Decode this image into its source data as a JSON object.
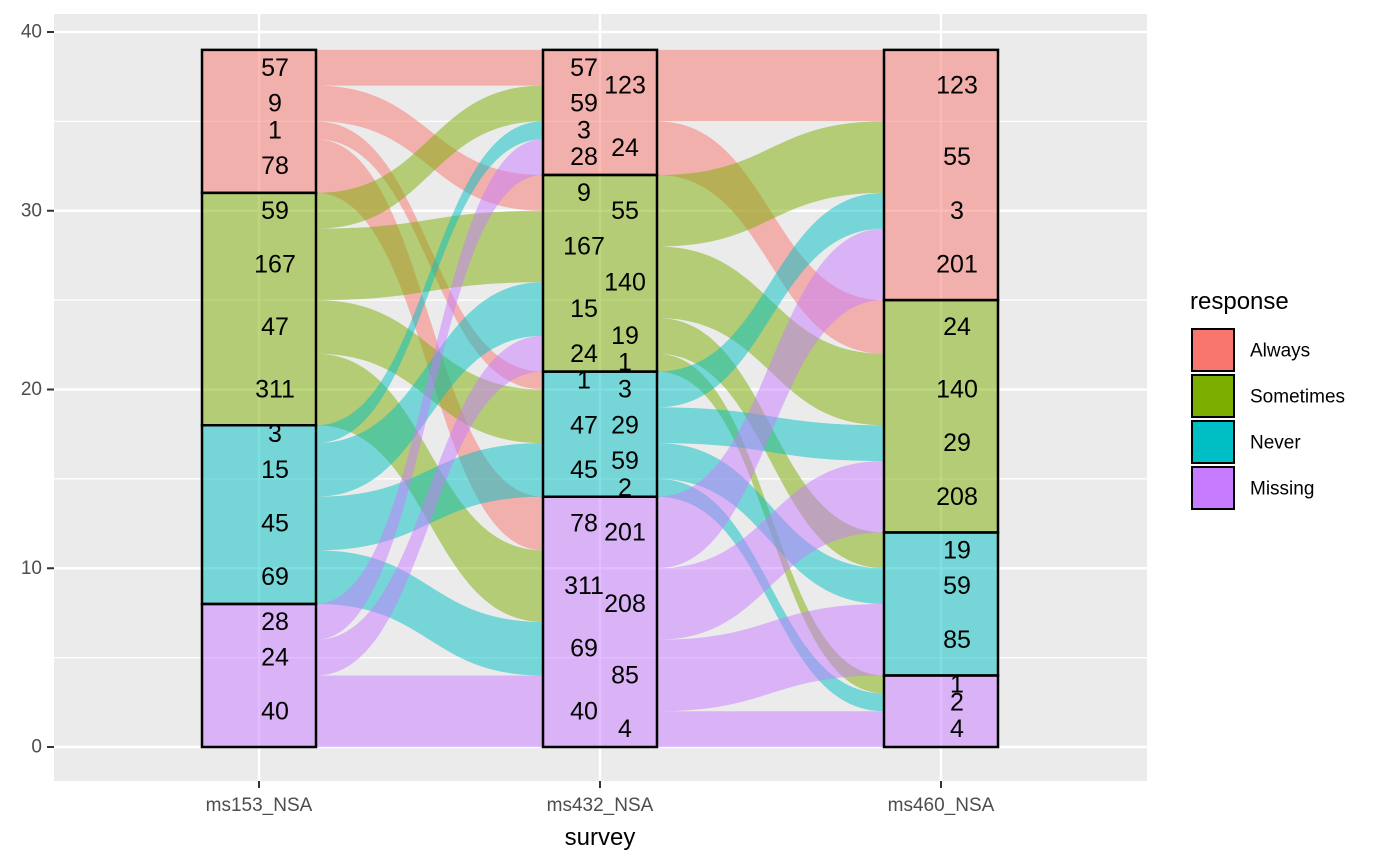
{
  "chart_data": {
    "type": "alluvial",
    "xlabel": "survey",
    "ylabel": "",
    "ylim": [
      0,
      40
    ],
    "yticks": [
      0,
      10,
      20,
      30,
      40
    ],
    "grid": true,
    "axes": [
      "ms153_NSA",
      "ms432_NSA",
      "ms460_NSA"
    ],
    "legend": {
      "title": "response",
      "position": "right",
      "entries": [
        "Always",
        "Sometimes",
        "Never",
        "Missing"
      ]
    },
    "colors": {
      "Always": "#F8766D",
      "Sometimes": "#7CAE00",
      "Never": "#00BFC4",
      "Missing": "#C77CFF"
    },
    "strata": [
      {
        "axis": "ms153_NSA",
        "response": "Always",
        "count": 8
      },
      {
        "axis": "ms153_NSA",
        "response": "Sometimes",
        "count": 13
      },
      {
        "axis": "ms153_NSA",
        "response": "Never",
        "count": 10
      },
      {
        "axis": "ms153_NSA",
        "response": "Missing",
        "count": 8
      },
      {
        "axis": "ms432_NSA",
        "response": "Always",
        "count": 7
      },
      {
        "axis": "ms432_NSA",
        "response": "Sometimes",
        "count": 11
      },
      {
        "axis": "ms432_NSA",
        "response": "Never",
        "count": 7
      },
      {
        "axis": "ms432_NSA",
        "response": "Missing",
        "count": 14
      },
      {
        "axis": "ms460_NSA",
        "response": "Always",
        "count": 14
      },
      {
        "axis": "ms460_NSA",
        "response": "Sometimes",
        "count": 13
      },
      {
        "axis": "ms460_NSA",
        "response": "Never",
        "count": 8
      },
      {
        "axis": "ms460_NSA",
        "response": "Missing",
        "count": 4
      }
    ],
    "flows": [
      {
        "from_axis": "ms153_NSA",
        "to_axis": "ms432_NSA",
        "fill": "Always",
        "from_bottom": 37,
        "from_top": 39,
        "to_bottom": 37,
        "to_top": 39
      },
      {
        "from_axis": "ms153_NSA",
        "to_axis": "ms432_NSA",
        "fill": "Always",
        "from_bottom": 35,
        "from_top": 37,
        "to_bottom": 30,
        "to_top": 32
      },
      {
        "from_axis": "ms153_NSA",
        "to_axis": "ms432_NSA",
        "fill": "Always",
        "from_bottom": 34,
        "from_top": 35,
        "to_bottom": 20,
        "to_top": 21
      },
      {
        "from_axis": "ms153_NSA",
        "to_axis": "ms432_NSA",
        "fill": "Always",
        "from_bottom": 31,
        "from_top": 34,
        "to_bottom": 11,
        "to_top": 14
      },
      {
        "from_axis": "ms153_NSA",
        "to_axis": "ms432_NSA",
        "fill": "Sometimes",
        "from_bottom": 29,
        "from_top": 31,
        "to_bottom": 35,
        "to_top": 37
      },
      {
        "from_axis": "ms153_NSA",
        "to_axis": "ms432_NSA",
        "fill": "Sometimes",
        "from_bottom": 25,
        "from_top": 29,
        "to_bottom": 26,
        "to_top": 30
      },
      {
        "from_axis": "ms153_NSA",
        "to_axis": "ms432_NSA",
        "fill": "Sometimes",
        "from_bottom": 22,
        "from_top": 25,
        "to_bottom": 17,
        "to_top": 20
      },
      {
        "from_axis": "ms153_NSA",
        "to_axis": "ms432_NSA",
        "fill": "Sometimes",
        "from_bottom": 18,
        "from_top": 22,
        "to_bottom": 7,
        "to_top": 11
      },
      {
        "from_axis": "ms153_NSA",
        "to_axis": "ms432_NSA",
        "fill": "Never",
        "from_bottom": 17,
        "from_top": 18,
        "to_bottom": 34,
        "to_top": 35
      },
      {
        "from_axis": "ms153_NSA",
        "to_axis": "ms432_NSA",
        "fill": "Never",
        "from_bottom": 14,
        "from_top": 17,
        "to_bottom": 23,
        "to_top": 26
      },
      {
        "from_axis": "ms153_NSA",
        "to_axis": "ms432_NSA",
        "fill": "Never",
        "from_bottom": 11,
        "from_top": 14,
        "to_bottom": 14,
        "to_top": 17
      },
      {
        "from_axis": "ms153_NSA",
        "to_axis": "ms432_NSA",
        "fill": "Never",
        "from_bottom": 8,
        "from_top": 11,
        "to_bottom": 4,
        "to_top": 7
      },
      {
        "from_axis": "ms153_NSA",
        "to_axis": "ms432_NSA",
        "fill": "Missing",
        "from_bottom": 6,
        "from_top": 8,
        "to_bottom": 32,
        "to_top": 34
      },
      {
        "from_axis": "ms153_NSA",
        "to_axis": "ms432_NSA",
        "fill": "Missing",
        "from_bottom": 4,
        "from_top": 6,
        "to_bottom": 21,
        "to_top": 23
      },
      {
        "from_axis": "ms153_NSA",
        "to_axis": "ms432_NSA",
        "fill": "Missing",
        "from_bottom": 0,
        "from_top": 4,
        "to_bottom": 0,
        "to_top": 4
      },
      {
        "from_axis": "ms432_NSA",
        "to_axis": "ms460_NSA",
        "fill": "Always",
        "from_bottom": 35,
        "from_top": 39,
        "to_bottom": 35,
        "to_top": 39
      },
      {
        "from_axis": "ms432_NSA",
        "to_axis": "ms460_NSA",
        "fill": "Always",
        "from_bottom": 32,
        "from_top": 35,
        "to_bottom": 22,
        "to_top": 25
      },
      {
        "from_axis": "ms432_NSA",
        "to_axis": "ms460_NSA",
        "fill": "Sometimes",
        "from_bottom": 28,
        "from_top": 32,
        "to_bottom": 31,
        "to_top": 35
      },
      {
        "from_axis": "ms432_NSA",
        "to_axis": "ms460_NSA",
        "fill": "Sometimes",
        "from_bottom": 24,
        "from_top": 28,
        "to_bottom": 18,
        "to_top": 22
      },
      {
        "from_axis": "ms432_NSA",
        "to_axis": "ms460_NSA",
        "fill": "Sometimes",
        "from_bottom": 22,
        "from_top": 24,
        "to_bottom": 10,
        "to_top": 12
      },
      {
        "from_axis": "ms432_NSA",
        "to_axis": "ms460_NSA",
        "fill": "Sometimes",
        "from_bottom": 21,
        "from_top": 22,
        "to_bottom": 3,
        "to_top": 4
      },
      {
        "from_axis": "ms432_NSA",
        "to_axis": "ms460_NSA",
        "fill": "Never",
        "from_bottom": 19,
        "from_top": 21,
        "to_bottom": 29,
        "to_top": 31
      },
      {
        "from_axis": "ms432_NSA",
        "to_axis": "ms460_NSA",
        "fill": "Never",
        "from_bottom": 17,
        "from_top": 19,
        "to_bottom": 16,
        "to_top": 18
      },
      {
        "from_axis": "ms432_NSA",
        "to_axis": "ms460_NSA",
        "fill": "Never",
        "from_bottom": 15,
        "from_top": 17,
        "to_bottom": 8,
        "to_top": 10
      },
      {
        "from_axis": "ms432_NSA",
        "to_axis": "ms460_NSA",
        "fill": "Never",
        "from_bottom": 14,
        "from_top": 15,
        "to_bottom": 2,
        "to_top": 3
      },
      {
        "from_axis": "ms432_NSA",
        "to_axis": "ms460_NSA",
        "fill": "Missing",
        "from_bottom": 10,
        "from_top": 14,
        "to_bottom": 25,
        "to_top": 29
      },
      {
        "from_axis": "ms432_NSA",
        "to_axis": "ms460_NSA",
        "fill": "Missing",
        "from_bottom": 6,
        "from_top": 10,
        "to_bottom": 12,
        "to_top": 16
      },
      {
        "from_axis": "ms432_NSA",
        "to_axis": "ms460_NSA",
        "fill": "Missing",
        "from_bottom": 2,
        "from_top": 6,
        "to_bottom": 4,
        "to_top": 8
      },
      {
        "from_axis": "ms432_NSA",
        "to_axis": "ms460_NSA",
        "fill": "Missing",
        "from_bottom": 0,
        "from_top": 2,
        "to_bottom": 0,
        "to_top": 2
      }
    ],
    "labels": [
      {
        "axis": "ms153_NSA",
        "side": "center",
        "text": "57",
        "y": 38
      },
      {
        "axis": "ms153_NSA",
        "side": "center",
        "text": "9",
        "y": 36
      },
      {
        "axis": "ms153_NSA",
        "side": "center",
        "text": "1",
        "y": 34.5
      },
      {
        "axis": "ms153_NSA",
        "side": "center",
        "text": "78",
        "y": 32.5
      },
      {
        "axis": "ms153_NSA",
        "side": "center",
        "text": "59",
        "y": 30
      },
      {
        "axis": "ms153_NSA",
        "side": "center",
        "text": "167",
        "y": 27
      },
      {
        "axis": "ms153_NSA",
        "side": "center",
        "text": "47",
        "y": 23.5
      },
      {
        "axis": "ms153_NSA",
        "side": "center",
        "text": "311",
        "y": 20
      },
      {
        "axis": "ms153_NSA",
        "side": "center",
        "text": "3",
        "y": 17.5
      },
      {
        "axis": "ms153_NSA",
        "side": "center",
        "text": "15",
        "y": 15.5
      },
      {
        "axis": "ms153_NSA",
        "side": "center",
        "text": "45",
        "y": 12.5
      },
      {
        "axis": "ms153_NSA",
        "side": "center",
        "text": "69",
        "y": 9.5
      },
      {
        "axis": "ms153_NSA",
        "side": "center",
        "text": "28",
        "y": 7
      },
      {
        "axis": "ms153_NSA",
        "side": "center",
        "text": "24",
        "y": 5
      },
      {
        "axis": "ms153_NSA",
        "side": "center",
        "text": "40",
        "y": 2
      },
      {
        "axis": "ms432_NSA",
        "side": "left",
        "text": "57",
        "y": 38
      },
      {
        "axis": "ms432_NSA",
        "side": "left",
        "text": "59",
        "y": 36
      },
      {
        "axis": "ms432_NSA",
        "side": "left",
        "text": "3",
        "y": 34.5
      },
      {
        "axis": "ms432_NSA",
        "side": "left",
        "text": "28",
        "y": 33
      },
      {
        "axis": "ms432_NSA",
        "side": "left",
        "text": "9",
        "y": 31
      },
      {
        "axis": "ms432_NSA",
        "side": "left",
        "text": "167",
        "y": 28
      },
      {
        "axis": "ms432_NSA",
        "side": "left",
        "text": "15",
        "y": 24.5
      },
      {
        "axis": "ms432_NSA",
        "side": "left",
        "text": "24",
        "y": 22
      },
      {
        "axis": "ms432_NSA",
        "side": "left",
        "text": "1",
        "y": 20.5
      },
      {
        "axis": "ms432_NSA",
        "side": "left",
        "text": "47",
        "y": 18
      },
      {
        "axis": "ms432_NSA",
        "side": "left",
        "text": "45",
        "y": 15.5
      },
      {
        "axis": "ms432_NSA",
        "side": "left",
        "text": "78",
        "y": 12.5
      },
      {
        "axis": "ms432_NSA",
        "side": "left",
        "text": "311",
        "y": 9
      },
      {
        "axis": "ms432_NSA",
        "side": "left",
        "text": "69",
        "y": 5.5
      },
      {
        "axis": "ms432_NSA",
        "side": "left",
        "text": "40",
        "y": 2
      },
      {
        "axis": "ms432_NSA",
        "side": "right",
        "text": "123",
        "y": 37
      },
      {
        "axis": "ms432_NSA",
        "side": "right",
        "text": "24",
        "y": 33.5
      },
      {
        "axis": "ms432_NSA",
        "side": "right",
        "text": "55",
        "y": 30
      },
      {
        "axis": "ms432_NSA",
        "side": "right",
        "text": "140",
        "y": 26
      },
      {
        "axis": "ms432_NSA",
        "side": "right",
        "text": "19",
        "y": 23
      },
      {
        "axis": "ms432_NSA",
        "side": "right",
        "text": "1",
        "y": 21.5
      },
      {
        "axis": "ms432_NSA",
        "side": "right",
        "text": "3",
        "y": 20
      },
      {
        "axis": "ms432_NSA",
        "side": "right",
        "text": "29",
        "y": 18
      },
      {
        "axis": "ms432_NSA",
        "side": "right",
        "text": "59",
        "y": 16
      },
      {
        "axis": "ms432_NSA",
        "side": "right",
        "text": "2",
        "y": 14.5
      },
      {
        "axis": "ms432_NSA",
        "side": "right",
        "text": "201",
        "y": 12
      },
      {
        "axis": "ms432_NSA",
        "side": "right",
        "text": "208",
        "y": 8
      },
      {
        "axis": "ms432_NSA",
        "side": "right",
        "text": "85",
        "y": 4
      },
      {
        "axis": "ms432_NSA",
        "side": "right",
        "text": "4",
        "y": 1
      },
      {
        "axis": "ms460_NSA",
        "side": "center",
        "text": "123",
        "y": 37
      },
      {
        "axis": "ms460_NSA",
        "side": "center",
        "text": "55",
        "y": 33
      },
      {
        "axis": "ms460_NSA",
        "side": "center",
        "text": "3",
        "y": 30
      },
      {
        "axis": "ms460_NSA",
        "side": "center",
        "text": "201",
        "y": 27
      },
      {
        "axis": "ms460_NSA",
        "side": "center",
        "text": "24",
        "y": 23.5
      },
      {
        "axis": "ms460_NSA",
        "side": "center",
        "text": "140",
        "y": 20
      },
      {
        "axis": "ms460_NSA",
        "side": "center",
        "text": "29",
        "y": 17
      },
      {
        "axis": "ms460_NSA",
        "side": "center",
        "text": "208",
        "y": 14
      },
      {
        "axis": "ms460_NSA",
        "side": "center",
        "text": "19",
        "y": 11
      },
      {
        "axis": "ms460_NSA",
        "side": "center",
        "text": "59",
        "y": 9
      },
      {
        "axis": "ms460_NSA",
        "side": "center",
        "text": "85",
        "y": 6
      },
      {
        "axis": "ms460_NSA",
        "side": "center",
        "text": "1",
        "y": 3.5
      },
      {
        "axis": "ms460_NSA",
        "side": "center",
        "text": "2",
        "y": 2.5
      },
      {
        "axis": "ms460_NSA",
        "side": "center",
        "text": "4",
        "y": 1
      }
    ]
  }
}
